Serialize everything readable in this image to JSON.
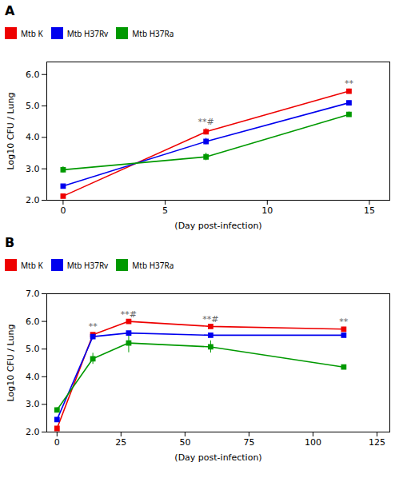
{
  "chart_data": [
    {
      "type": "line",
      "title": "A",
      "x_label": "(Day post-infection)",
      "y_label": "Log10 CFU / Lung",
      "xlim": [
        -0.8,
        16
      ],
      "ylim": [
        2.0,
        6.4
      ],
      "xticks": [
        0,
        5,
        10,
        15
      ],
      "yticks": [
        {
          "value": 2.0,
          "label": "2.0"
        },
        {
          "value": 3.0,
          "label": "3.0"
        },
        {
          "value": 4.0,
          "label": "4.0"
        },
        {
          "value": 5.0,
          "label": "5.0"
        },
        {
          "value": 6.0,
          "label": "6.0"
        }
      ],
      "marker": "square",
      "x": [
        0,
        7,
        14
      ],
      "series": [
        {
          "name": "Mtb K",
          "color": "#ee0000",
          "values": [
            2.13,
            4.18,
            5.47
          ],
          "yerr": [
            0.05,
            0.1,
            0.07
          ]
        },
        {
          "name": "Mtb H37Rv",
          "color": "#0000ee",
          "values": [
            2.45,
            3.87,
            5.1
          ],
          "yerr": [
            0.05,
            0.1,
            0.06
          ]
        },
        {
          "name": "Mtb H37Ra",
          "color": "#009900",
          "values": [
            2.97,
            3.38,
            4.73
          ],
          "yerr": [
            0.1,
            0.12,
            0.08
          ]
        }
      ],
      "annotations": [
        {
          "text": "**#",
          "x": 7,
          "y": 4.4
        },
        {
          "text": "**",
          "x": 14,
          "y": 5.63
        }
      ]
    },
    {
      "type": "line",
      "title": "B",
      "x_label": "(Day post-infection)",
      "y_label": "Log10 CFU / Lung",
      "xlim": [
        -4,
        130
      ],
      "ylim": [
        2.0,
        7.0
      ],
      "xticks": [
        0,
        25,
        50,
        75,
        100,
        125
      ],
      "yticks": [
        {
          "value": 2.0,
          "label": "2.0"
        },
        {
          "value": 3.0,
          "label": "3.0"
        },
        {
          "value": 4.0,
          "label": "4.0"
        },
        {
          "value": 5.0,
          "label": "5.0"
        },
        {
          "value": 6.0,
          "label": "6.0"
        },
        {
          "value": 7.0,
          "label": "7.0"
        }
      ],
      "marker": "square",
      "x": [
        0,
        14,
        28,
        60,
        112
      ],
      "series": [
        {
          "name": "Mtb K",
          "color": "#ee0000",
          "values": [
            2.13,
            5.52,
            6.0,
            5.82,
            5.72
          ],
          "yerr": [
            0.05,
            0.06,
            0.06,
            0.07,
            0.07
          ]
        },
        {
          "name": "Mtb H37Rv",
          "color": "#0000ee",
          "values": [
            2.45,
            5.45,
            5.58,
            5.5,
            5.5
          ],
          "yerr": [
            0.05,
            0.05,
            0.06,
            0.05,
            0.05
          ]
        },
        {
          "name": "Mtb H37Ra",
          "color": "#009900",
          "values": [
            2.8,
            4.65,
            5.22,
            5.08,
            4.35
          ],
          "yerr": [
            0.08,
            0.2,
            0.35,
            0.22,
            0.07
          ]
        }
      ],
      "annotations": [
        {
          "text": "**",
          "x": 14,
          "y": 5.7
        },
        {
          "text": "**#",
          "x": 28,
          "y": 6.16
        },
        {
          "text": "**#",
          "x": 60,
          "y": 5.98
        },
        {
          "text": "**",
          "x": 112,
          "y": 5.9
        }
      ]
    }
  ]
}
